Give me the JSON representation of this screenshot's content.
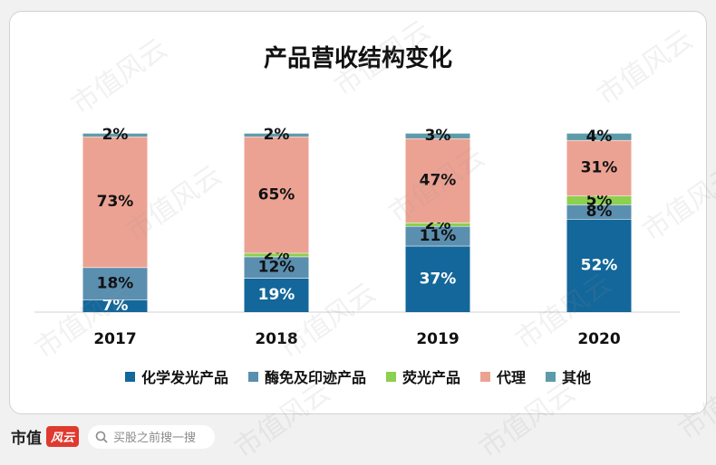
{
  "chart_data": {
    "type": "bar",
    "stacked": true,
    "title": "产品营收结构变化",
    "categories": [
      "2017",
      "2018",
      "2019",
      "2020"
    ],
    "series": [
      {
        "name": "化学发光产品",
        "color": "#13679a",
        "values": [
          7,
          19,
          37,
          52
        ],
        "labels": [
          "7%",
          "19%",
          "37%",
          "52%"
        ]
      },
      {
        "name": "酶免及印迹产品",
        "color": "#5b8fb0",
        "values": [
          18,
          12,
          11,
          8
        ],
        "labels": [
          "18%",
          "12%",
          "11%",
          "8%"
        ]
      },
      {
        "name": "荧光产品",
        "color": "#8dcf4e",
        "values": [
          0,
          2,
          2,
          5
        ],
        "labels": [
          "",
          "2%",
          "2%",
          "5%"
        ]
      },
      {
        "name": "代理",
        "color": "#eca293",
        "values": [
          73,
          65,
          47,
          31
        ],
        "labels": [
          "73%",
          "65%",
          "47%",
          "31%"
        ]
      },
      {
        "name": "其他",
        "color": "#5d9baa",
        "values": [
          2,
          2,
          3,
          4
        ],
        "labels": [
          "2%",
          "2%",
          "3%",
          "4%"
        ]
      }
    ],
    "ylim": [
      0,
      100
    ],
    "grid": false,
    "legend_position": "bottom"
  },
  "footer": {
    "brand_text": "市值",
    "brand_mark": "风云",
    "search_placeholder": "买股之前搜一搜"
  },
  "watermark": "市值风云"
}
